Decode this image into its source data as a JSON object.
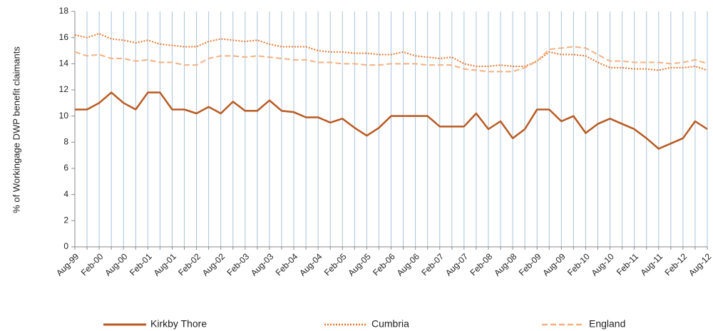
{
  "chart_data": {
    "type": "line",
    "y_label": "% of Workingage DWP benefit claimants",
    "categories": [
      "Aug-99",
      null,
      "Feb-00",
      null,
      "Aug-00",
      null,
      "Feb-01",
      null,
      "Aug-01",
      null,
      "Feb-02",
      null,
      "Aug-02",
      null,
      "Feb-03",
      null,
      "Aug-03",
      null,
      "Feb-04",
      null,
      "Aug-04",
      null,
      "Feb-05",
      null,
      "Aug-05",
      null,
      "Feb-06",
      null,
      "Aug-06",
      null,
      "Feb-07",
      null,
      "Aug-07",
      null,
      "Feb-08",
      null,
      "Aug-08",
      null,
      "Feb-09",
      null,
      "Aug-09",
      null,
      "Feb-10",
      null,
      "Aug-10",
      null,
      "Feb-11",
      null,
      "Aug-11",
      null,
      "Feb-12",
      null,
      "Aug-12"
    ],
    "series": [
      {
        "name": "Kirkby Thore",
        "color": "#b85a22",
        "style": "solid",
        "values": [
          10.5,
          10.5,
          11,
          11.8,
          11,
          10.5,
          11.8,
          11.8,
          10.5,
          10.5,
          10.2,
          10.7,
          10.2,
          11.1,
          10.4,
          10.4,
          11.2,
          10.4,
          10.3,
          9.9,
          9.9,
          9.5,
          9.8,
          9.1,
          8.5,
          9.1,
          10,
          10,
          10,
          10,
          9.2,
          9.2,
          9.2,
          10.2,
          9,
          9.6,
          8.3,
          9,
          10.5,
          10.5,
          9.6,
          10,
          8.7,
          9.4,
          9.8,
          9.4,
          9,
          8.3,
          7.5,
          7.9,
          8.3,
          9.6,
          9.0
        ]
      },
      {
        "name": "Cumbria",
        "color": "#e8772e",
        "style": "dotted",
        "values": [
          16.2,
          16,
          16.3,
          15.9,
          15.8,
          15.6,
          15.8,
          15.5,
          15.4,
          15.3,
          15.3,
          15.7,
          15.9,
          15.8,
          15.7,
          15.8,
          15.5,
          15.3,
          15.3,
          15.3,
          15.0,
          14.9,
          14.9,
          14.8,
          14.8,
          14.7,
          14.7,
          14.9,
          14.6,
          14.5,
          14.4,
          14.5,
          14.0,
          13.8,
          13.8,
          13.9,
          13.8,
          13.8,
          14.2,
          14.9,
          14.7,
          14.7,
          14.6,
          14.1,
          13.7,
          13.7,
          13.6,
          13.6,
          13.5,
          13.7,
          13.7,
          13.8,
          13.5
        ]
      },
      {
        "name": "England",
        "color": "#f4b183",
        "style": "dashed",
        "values": [
          14.9,
          14.6,
          14.7,
          14.4,
          14.4,
          14.2,
          14.3,
          14.1,
          14.1,
          13.9,
          13.9,
          14.4,
          14.6,
          14.6,
          14.5,
          14.6,
          14.5,
          14.4,
          14.3,
          14.3,
          14.1,
          14.1,
          14.0,
          14.0,
          13.9,
          13.9,
          14.0,
          14.0,
          14.0,
          13.9,
          13.9,
          13.9,
          13.6,
          13.5,
          13.4,
          13.4,
          13.4,
          13.7,
          14.2,
          15.1,
          15.2,
          15.3,
          15.2,
          14.7,
          14.2,
          14.2,
          14.1,
          14.1,
          14.1,
          14.0,
          14.1,
          14.3,
          14.0
        ]
      }
    ],
    "ylim": [
      0,
      18
    ],
    "yticks": [
      0,
      2,
      4,
      6,
      8,
      10,
      12,
      14,
      16,
      18
    ],
    "grid": "x",
    "grid_color": "#a9c4dc",
    "legend": "bottom"
  }
}
